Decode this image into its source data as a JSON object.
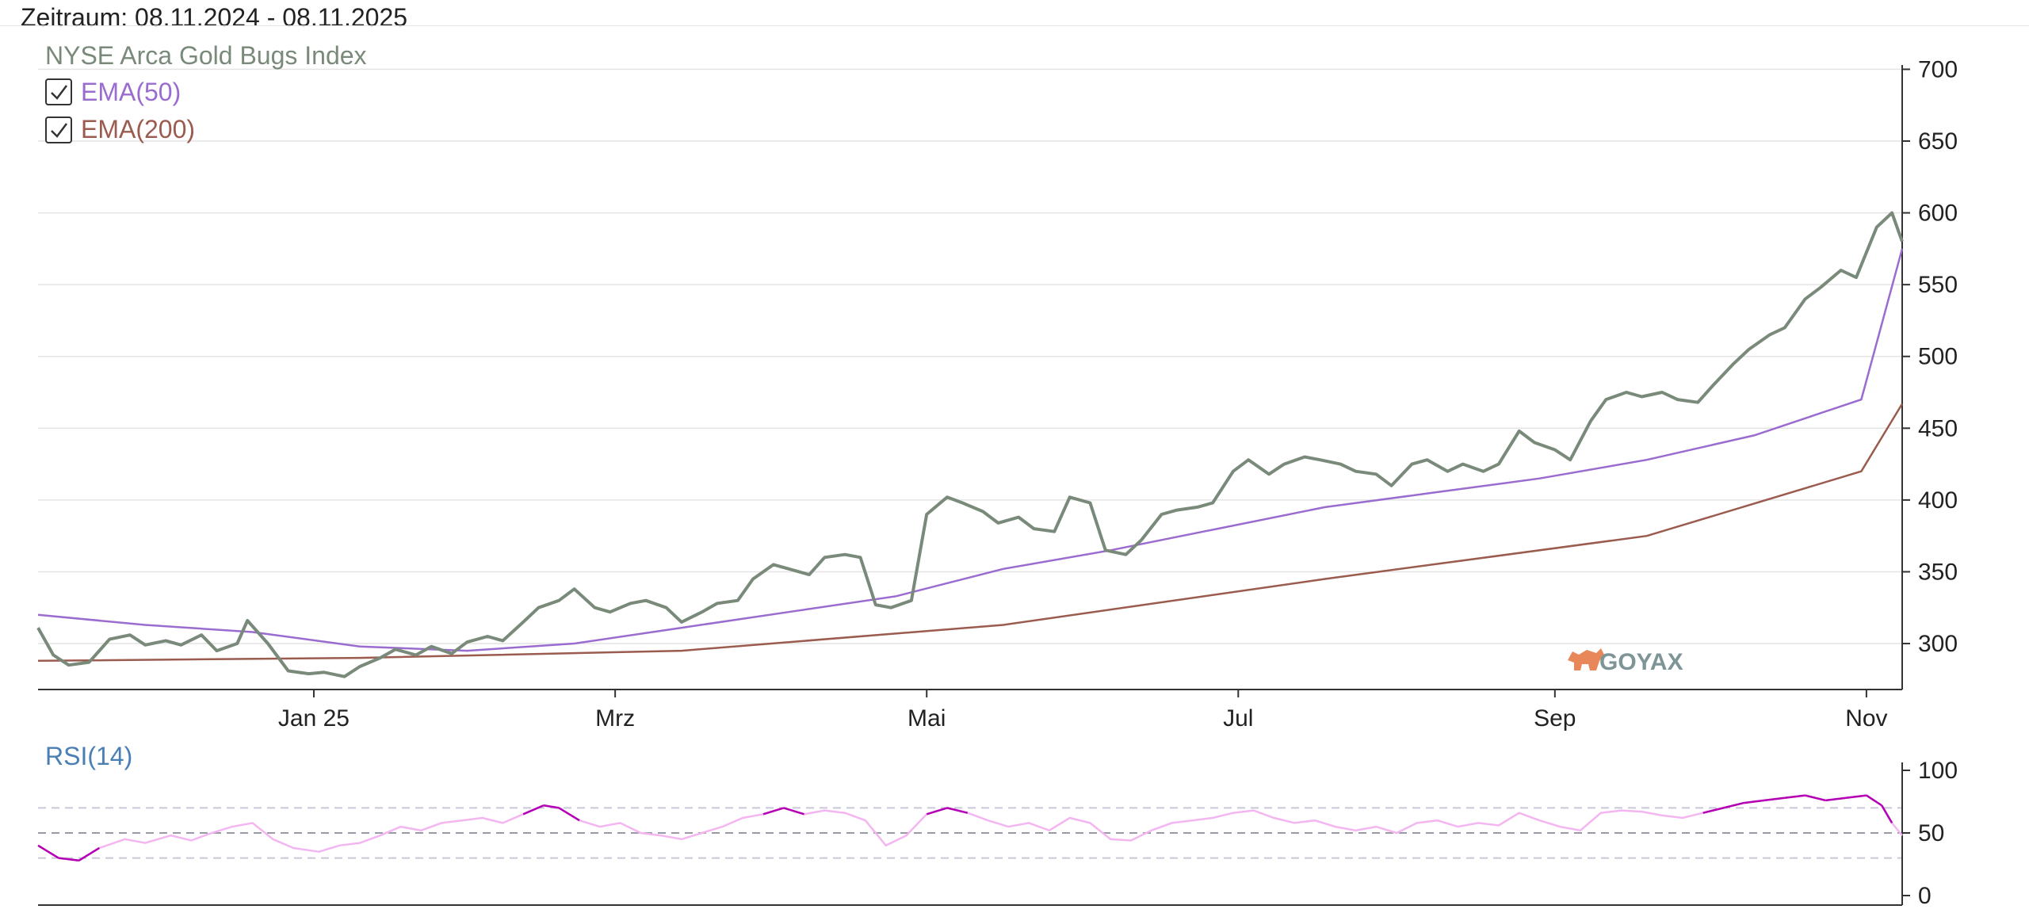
{
  "header": {
    "zeitraum": "Zeitraum: 08.11.2024 - 08.11.2025"
  },
  "brand": {
    "logo_text": "GOYAX",
    "logo_color": "#7d9597",
    "bull_color": "#e8875a"
  },
  "chart_data": [
    {
      "type": "line",
      "title": "NYSE Arca Gold Bugs Index",
      "x_domain": [
        "2024-11-08",
        "2025-11-08"
      ],
      "x_ticks": [
        {
          "label": "Jan 25",
          "date": "2025-01-01"
        },
        {
          "label": "Mrz",
          "date": "2025-03-01"
        },
        {
          "label": "Mai",
          "date": "2025-05-01"
        },
        {
          "label": "Jul",
          "date": "2025-07-01"
        },
        {
          "label": "Sep",
          "date": "2025-09-01"
        },
        {
          "label": "Nov",
          "date": "2025-11-01"
        }
      ],
      "ylim": [
        268,
        703
      ],
      "y_ticks": [
        300,
        350,
        400,
        450,
        500,
        550,
        600,
        650,
        700
      ],
      "grid": true,
      "legend_position": "top-left",
      "colors": {
        "price": "#7a8a7a",
        "ema50": "#9a6cd0",
        "ema200": "#9b5b4f"
      },
      "series": [
        {
          "name": "NYSE Arca Gold Bugs Index",
          "points": [
            [
              "2024-11-08",
              311
            ],
            [
              "2024-11-11",
              292
            ],
            [
              "2024-11-14",
              285
            ],
            [
              "2024-11-18",
              287
            ],
            [
              "2024-11-22",
              303
            ],
            [
              "2024-11-26",
              306
            ],
            [
              "2024-11-29",
              299
            ],
            [
              "2024-12-03",
              302
            ],
            [
              "2024-12-06",
              299
            ],
            [
              "2024-12-10",
              306
            ],
            [
              "2024-12-13",
              295
            ],
            [
              "2024-12-17",
              300
            ],
            [
              "2024-12-19",
              316
            ],
            [
              "2024-12-23",
              300
            ],
            [
              "2024-12-27",
              281
            ],
            [
              "2024-12-31",
              279
            ],
            [
              "2025-01-03",
              280
            ],
            [
              "2025-01-07",
              277
            ],
            [
              "2025-01-10",
              284
            ],
            [
              "2025-01-14",
              290
            ],
            [
              "2025-01-17",
              296
            ],
            [
              "2025-01-21",
              292
            ],
            [
              "2025-01-24",
              298
            ],
            [
              "2025-01-28",
              293
            ],
            [
              "2025-01-31",
              301
            ],
            [
              "2025-02-04",
              305
            ],
            [
              "2025-02-07",
              302
            ],
            [
              "2025-02-11",
              315
            ],
            [
              "2025-02-14",
              325
            ],
            [
              "2025-02-18",
              330
            ],
            [
              "2025-02-21",
              338
            ],
            [
              "2025-02-25",
              325
            ],
            [
              "2025-02-28",
              322
            ],
            [
              "2025-03-04",
              328
            ],
            [
              "2025-03-07",
              330
            ],
            [
              "2025-03-11",
              325
            ],
            [
              "2025-03-14",
              315
            ],
            [
              "2025-03-18",
              322
            ],
            [
              "2025-03-21",
              328
            ],
            [
              "2025-03-25",
              330
            ],
            [
              "2025-03-28",
              345
            ],
            [
              "2025-04-01",
              355
            ],
            [
              "2025-04-04",
              352
            ],
            [
              "2025-04-08",
              348
            ],
            [
              "2025-04-11",
              360
            ],
            [
              "2025-04-15",
              362
            ],
            [
              "2025-04-18",
              360
            ],
            [
              "2025-04-21",
              327
            ],
            [
              "2025-04-24",
              325
            ],
            [
              "2025-04-28",
              330
            ],
            [
              "2025-05-01",
              390
            ],
            [
              "2025-05-05",
              402
            ],
            [
              "2025-05-08",
              398
            ],
            [
              "2025-05-12",
              392
            ],
            [
              "2025-05-15",
              384
            ],
            [
              "2025-05-19",
              388
            ],
            [
              "2025-05-22",
              380
            ],
            [
              "2025-05-26",
              378
            ],
            [
              "2025-05-29",
              402
            ],
            [
              "2025-06-02",
              398
            ],
            [
              "2025-06-05",
              365
            ],
            [
              "2025-06-09",
              362
            ],
            [
              "2025-06-12",
              372
            ],
            [
              "2025-06-16",
              390
            ],
            [
              "2025-06-19",
              393
            ],
            [
              "2025-06-23",
              395
            ],
            [
              "2025-06-26",
              398
            ],
            [
              "2025-06-30",
              420
            ],
            [
              "2025-07-03",
              428
            ],
            [
              "2025-07-07",
              418
            ],
            [
              "2025-07-10",
              425
            ],
            [
              "2025-07-14",
              430
            ],
            [
              "2025-07-17",
              428
            ],
            [
              "2025-07-21",
              425
            ],
            [
              "2025-07-24",
              420
            ],
            [
              "2025-07-28",
              418
            ],
            [
              "2025-07-31",
              410
            ],
            [
              "2025-08-04",
              425
            ],
            [
              "2025-08-07",
              428
            ],
            [
              "2025-08-11",
              420
            ],
            [
              "2025-08-14",
              425
            ],
            [
              "2025-08-18",
              420
            ],
            [
              "2025-08-21",
              425
            ],
            [
              "2025-08-25",
              448
            ],
            [
              "2025-08-28",
              440
            ],
            [
              "2025-09-01",
              435
            ],
            [
              "2025-09-04",
              428
            ],
            [
              "2025-09-08",
              455
            ],
            [
              "2025-09-11",
              470
            ],
            [
              "2025-09-15",
              475
            ],
            [
              "2025-09-18",
              472
            ],
            [
              "2025-09-22",
              475
            ],
            [
              "2025-09-25",
              470
            ],
            [
              "2025-09-29",
              468
            ],
            [
              "2025-10-02",
              480
            ],
            [
              "2025-10-06",
              495
            ],
            [
              "2025-10-09",
              505
            ],
            [
              "2025-10-13",
              515
            ],
            [
              "2025-10-16",
              520
            ],
            [
              "2025-10-20",
              540
            ],
            [
              "2025-10-23",
              548
            ],
            [
              "2025-10-27",
              560
            ],
            [
              "2025-10-30",
              555
            ],
            [
              "2025-11-03",
              590
            ],
            [
              "2025-11-06",
              600
            ],
            [
              "2025-11-08",
              580
            ]
          ]
        },
        {
          "name": "EMA(50)",
          "points": [
            [
              "2024-11-08",
              320
            ],
            [
              "2024-11-29",
              313
            ],
            [
              "2024-12-20",
              308
            ],
            [
              "2025-01-10",
              298
            ],
            [
              "2025-01-31",
              295
            ],
            [
              "2025-02-21",
              300
            ],
            [
              "2025-03-14",
              311
            ],
            [
              "2025-04-04",
              322
            ],
            [
              "2025-04-25",
              333
            ],
            [
              "2025-05-16",
              352
            ],
            [
              "2025-06-06",
              365
            ],
            [
              "2025-06-27",
              380
            ],
            [
              "2025-07-18",
              395
            ],
            [
              "2025-08-08",
              405
            ],
            [
              "2025-08-29",
              415
            ],
            [
              "2025-09-19",
              428
            ],
            [
              "2025-10-10",
              445
            ],
            [
              "2025-10-31",
              470
            ],
            [
              "2025-11-08",
              575
            ]
          ]
        },
        {
          "name": "EMA(200)",
          "points": [
            [
              "2024-11-08",
              288
            ],
            [
              "2025-01-10",
              290
            ],
            [
              "2025-03-14",
              295
            ],
            [
              "2025-05-16",
              313
            ],
            [
              "2025-07-18",
              345
            ],
            [
              "2025-09-19",
              375
            ],
            [
              "2025-10-31",
              420
            ],
            [
              "2025-11-08",
              467
            ]
          ]
        }
      ]
    },
    {
      "type": "line",
      "title": "RSI(14)",
      "ylim": [
        0,
        100
      ],
      "y_ticks": [
        0,
        50,
        100
      ],
      "reference_lines": [
        30,
        50,
        70
      ],
      "colors": {
        "rsi_normal": "#f4b6f0",
        "rsi_overbought": "#b400b4",
        "reference": "#c8c8d8",
        "midline": "#9a9aa6"
      },
      "series": [
        {
          "name": "RSI(14)",
          "points": [
            [
              "2024-11-08",
              40
            ],
            [
              "2024-11-12",
              30
            ],
            [
              "2024-11-16",
              28
            ],
            [
              "2024-11-20",
              38
            ],
            [
              "2024-11-25",
              45
            ],
            [
              "2024-11-29",
              42
            ],
            [
              "2024-12-04",
              48
            ],
            [
              "2024-12-08",
              44
            ],
            [
              "2024-12-12",
              50
            ],
            [
              "2024-12-16",
              55
            ],
            [
              "2024-12-20",
              58
            ],
            [
              "2024-12-24",
              45
            ],
            [
              "2024-12-28",
              38
            ],
            [
              "2025-01-02",
              35
            ],
            [
              "2025-01-06",
              40
            ],
            [
              "2025-01-10",
              42
            ],
            [
              "2025-01-14",
              48
            ],
            [
              "2025-01-18",
              55
            ],
            [
              "2025-01-22",
              52
            ],
            [
              "2025-01-26",
              58
            ],
            [
              "2025-01-30",
              60
            ],
            [
              "2025-02-03",
              62
            ],
            [
              "2025-02-07",
              58
            ],
            [
              "2025-02-11",
              65
            ],
            [
              "2025-02-15",
              72
            ],
            [
              "2025-02-18",
              70
            ],
            [
              "2025-02-22",
              60
            ],
            [
              "2025-02-26",
              55
            ],
            [
              "2025-03-02",
              58
            ],
            [
              "2025-03-06",
              50
            ],
            [
              "2025-03-10",
              48
            ],
            [
              "2025-03-14",
              45
            ],
            [
              "2025-03-18",
              50
            ],
            [
              "2025-03-22",
              55
            ],
            [
              "2025-03-26",
              62
            ],
            [
              "2025-03-30",
              65
            ],
            [
              "2025-04-03",
              70
            ],
            [
              "2025-04-07",
              65
            ],
            [
              "2025-04-11",
              68
            ],
            [
              "2025-04-15",
              66
            ],
            [
              "2025-04-19",
              60
            ],
            [
              "2025-04-23",
              40
            ],
            [
              "2025-04-27",
              48
            ],
            [
              "2025-05-01",
              65
            ],
            [
              "2025-05-05",
              70
            ],
            [
              "2025-05-09",
              66
            ],
            [
              "2025-05-13",
              60
            ],
            [
              "2025-05-17",
              55
            ],
            [
              "2025-05-21",
              58
            ],
            [
              "2025-05-25",
              52
            ],
            [
              "2025-05-29",
              62
            ],
            [
              "2025-06-02",
              58
            ],
            [
              "2025-06-06",
              45
            ],
            [
              "2025-06-10",
              44
            ],
            [
              "2025-06-14",
              52
            ],
            [
              "2025-06-18",
              58
            ],
            [
              "2025-06-22",
              60
            ],
            [
              "2025-06-26",
              62
            ],
            [
              "2025-06-30",
              66
            ],
            [
              "2025-07-04",
              68
            ],
            [
              "2025-07-08",
              62
            ],
            [
              "2025-07-12",
              58
            ],
            [
              "2025-07-16",
              60
            ],
            [
              "2025-07-20",
              55
            ],
            [
              "2025-07-24",
              52
            ],
            [
              "2025-07-28",
              55
            ],
            [
              "2025-08-01",
              50
            ],
            [
              "2025-08-05",
              58
            ],
            [
              "2025-08-09",
              60
            ],
            [
              "2025-08-13",
              55
            ],
            [
              "2025-08-17",
              58
            ],
            [
              "2025-08-21",
              56
            ],
            [
              "2025-08-25",
              66
            ],
            [
              "2025-08-29",
              60
            ],
            [
              "2025-09-02",
              55
            ],
            [
              "2025-09-06",
              52
            ],
            [
              "2025-09-10",
              66
            ],
            [
              "2025-09-14",
              68
            ],
            [
              "2025-09-18",
              67
            ],
            [
              "2025-09-22",
              64
            ],
            [
              "2025-09-26",
              62
            ],
            [
              "2025-09-30",
              66
            ],
            [
              "2025-10-04",
              70
            ],
            [
              "2025-10-08",
              74
            ],
            [
              "2025-10-12",
              76
            ],
            [
              "2025-10-16",
              78
            ],
            [
              "2025-10-20",
              80
            ],
            [
              "2025-10-24",
              76
            ],
            [
              "2025-10-28",
              78
            ],
            [
              "2025-11-01",
              80
            ],
            [
              "2025-11-04",
              72
            ],
            [
              "2025-11-06",
              58
            ],
            [
              "2025-11-08",
              48
            ]
          ]
        }
      ]
    }
  ]
}
